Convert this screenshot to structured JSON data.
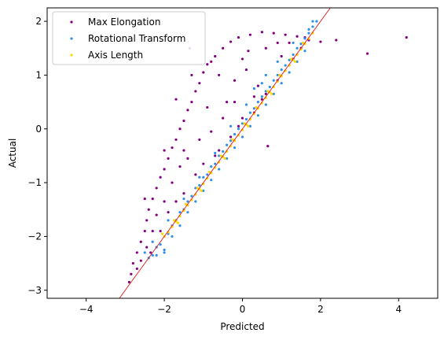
{
  "chart_data": {
    "type": "scatter",
    "xlabel": "Predicted",
    "ylabel": "Actual",
    "xlim": [
      -5,
      5
    ],
    "ylim": [
      -3.15,
      2.25
    ],
    "xticks": [
      -4,
      -2,
      0,
      2,
      4
    ],
    "yticks": [
      -3,
      -2,
      -1,
      0,
      1,
      2
    ],
    "grid": false,
    "legend_position": "top-left",
    "reference_line": {
      "color": "#e41a1c",
      "points": [
        [
          -3.2,
          -3.2
        ],
        [
          2.4,
          2.4
        ]
      ]
    },
    "series": [
      {
        "name": "Max Elongation",
        "color": "#800080",
        "points": [
          [
            -2.9,
            -2.85
          ],
          [
            -2.85,
            -2.7
          ],
          [
            -2.8,
            -2.5
          ],
          [
            -2.7,
            -2.3
          ],
          [
            -2.6,
            -2.1
          ],
          [
            -2.5,
            -1.9
          ],
          [
            -2.45,
            -1.7
          ],
          [
            -2.4,
            -1.5
          ],
          [
            -2.3,
            -1.3
          ],
          [
            -2.2,
            -1.1
          ],
          [
            -2.1,
            -0.9
          ],
          [
            -2.0,
            -0.75
          ],
          [
            -1.9,
            -0.55
          ],
          [
            -1.8,
            -0.35
          ],
          [
            -1.7,
            -0.2
          ],
          [
            -1.6,
            0.0
          ],
          [
            -1.5,
            0.15
          ],
          [
            -1.4,
            0.35
          ],
          [
            -1.3,
            0.5
          ],
          [
            -1.2,
            0.7
          ],
          [
            -1.1,
            0.85
          ],
          [
            -1.0,
            1.05
          ],
          [
            -0.9,
            1.2
          ],
          [
            -0.7,
            1.35
          ],
          [
            -0.5,
            1.5
          ],
          [
            -0.3,
            1.62
          ],
          [
            -0.1,
            1.7
          ],
          [
            0.2,
            1.75
          ],
          [
            0.5,
            1.8
          ],
          [
            0.8,
            1.78
          ],
          [
            1.1,
            1.75
          ],
          [
            1.4,
            1.72
          ],
          [
            1.6,
            1.7
          ],
          [
            2.0,
            1.62
          ],
          [
            2.4,
            1.65
          ],
          [
            3.2,
            1.4
          ],
          [
            4.2,
            1.7
          ],
          [
            -1.35,
            1.5
          ],
          [
            -0.4,
            0.5
          ],
          [
            0.65,
            -0.32
          ],
          [
            0.3,
            0.6
          ],
          [
            -0.2,
            0.9
          ],
          [
            -0.9,
            0.4
          ],
          [
            -1.5,
            -0.4
          ],
          [
            -2.2,
            -1.6
          ],
          [
            -1.8,
            -1.0
          ],
          [
            -1.1,
            -0.2
          ],
          [
            -0.5,
            0.2
          ],
          [
            0.1,
            1.1
          ],
          [
            0.0,
            1.3
          ],
          [
            0.6,
            1.5
          ],
          [
            1.2,
            1.6
          ],
          [
            -1.6,
            -0.7
          ],
          [
            -2.0,
            -1.35
          ],
          [
            -2.6,
            -2.45
          ],
          [
            -2.3,
            -1.9
          ],
          [
            -1.4,
            -0.55
          ],
          [
            -0.8,
            -0.05
          ],
          [
            -0.2,
            0.5
          ],
          [
            0.4,
            0.8
          ],
          [
            1.0,
            1.35
          ],
          [
            -1.9,
            -1.55
          ],
          [
            -1.2,
            -0.85
          ],
          [
            -0.6,
            -0.4
          ],
          [
            0.0,
            0.2
          ],
          [
            0.5,
            0.55
          ],
          [
            1.5,
            1.5
          ],
          [
            1.7,
            1.65
          ],
          [
            -2.45,
            -2.2
          ],
          [
            -1.7,
            -1.35
          ],
          [
            -1.0,
            -0.65
          ],
          [
            -0.3,
            -0.15
          ],
          [
            0.3,
            0.3
          ],
          [
            0.9,
            0.9
          ],
          [
            -2.1,
            -1.9
          ],
          [
            -1.5,
            -1.2
          ],
          [
            -0.7,
            -0.5
          ],
          [
            -0.1,
            0.05
          ],
          [
            0.6,
            0.65
          ],
          [
            1.3,
            1.3
          ],
          [
            -1.3,
            1.0
          ],
          [
            -0.8,
            1.25
          ],
          [
            -2.0,
            -0.4
          ],
          [
            -2.5,
            -1.3
          ],
          [
            -1.7,
            0.55
          ],
          [
            -0.6,
            1.0
          ],
          [
            0.15,
            1.45
          ],
          [
            0.9,
            1.6
          ],
          [
            -2.7,
            -2.6
          ],
          [
            -2.35,
            -2.3
          ]
        ]
      },
      {
        "name": "Rotational Transform",
        "color": "#2e8fe8",
        "points": [
          [
            -2.4,
            -2.4
          ],
          [
            -2.3,
            -2.35
          ],
          [
            -2.2,
            -2.2
          ],
          [
            -2.1,
            -2.15
          ],
          [
            -2.0,
            -2.0
          ],
          [
            -1.9,
            -1.95
          ],
          [
            -1.8,
            -1.8
          ],
          [
            -1.7,
            -1.7
          ],
          [
            -1.6,
            -1.55
          ],
          [
            -1.5,
            -1.5
          ],
          [
            -1.4,
            -1.35
          ],
          [
            -1.3,
            -1.25
          ],
          [
            -1.2,
            -1.1
          ],
          [
            -1.1,
            -1.05
          ],
          [
            -1.0,
            -0.9
          ],
          [
            -0.9,
            -0.85
          ],
          [
            -0.8,
            -0.7
          ],
          [
            -0.7,
            -0.65
          ],
          [
            -0.6,
            -0.5
          ],
          [
            -0.5,
            -0.42
          ],
          [
            -0.4,
            -0.3
          ],
          [
            -0.3,
            -0.22
          ],
          [
            -0.2,
            -0.1
          ],
          [
            -0.1,
            0.0
          ],
          [
            0.0,
            0.1
          ],
          [
            0.1,
            0.18
          ],
          [
            0.2,
            0.3
          ],
          [
            0.3,
            0.38
          ],
          [
            0.4,
            0.5
          ],
          [
            0.5,
            0.6
          ],
          [
            0.6,
            0.7
          ],
          [
            0.7,
            0.78
          ],
          [
            0.8,
            0.9
          ],
          [
            0.9,
            1.0
          ],
          [
            1.0,
            1.1
          ],
          [
            1.1,
            1.18
          ],
          [
            1.2,
            1.28
          ],
          [
            1.3,
            1.38
          ],
          [
            1.4,
            1.5
          ],
          [
            1.5,
            1.58
          ],
          [
            1.6,
            1.68
          ],
          [
            1.7,
            1.78
          ],
          [
            1.8,
            1.9
          ],
          [
            1.8,
            2.0
          ],
          [
            1.9,
            2.0
          ],
          [
            -2.2,
            -2.35
          ],
          [
            -2.0,
            -2.25
          ],
          [
            -1.8,
            -2.0
          ],
          [
            -1.6,
            -1.8
          ],
          [
            -1.4,
            -1.55
          ],
          [
            -1.2,
            -1.35
          ],
          [
            -1.0,
            -1.15
          ],
          [
            -0.8,
            -0.95
          ],
          [
            -0.6,
            -0.75
          ],
          [
            -0.4,
            -0.55
          ],
          [
            -0.2,
            -0.35
          ],
          [
            0.0,
            -0.15
          ],
          [
            0.2,
            0.05
          ],
          [
            0.4,
            0.25
          ],
          [
            0.6,
            0.45
          ],
          [
            0.8,
            0.65
          ],
          [
            1.0,
            0.85
          ],
          [
            1.2,
            1.05
          ],
          [
            1.4,
            1.25
          ],
          [
            1.6,
            1.45
          ],
          [
            -2.3,
            -2.1
          ],
          [
            -1.9,
            -1.7
          ],
          [
            -1.5,
            -1.3
          ],
          [
            -1.1,
            -0.9
          ],
          [
            -0.7,
            -0.45
          ],
          [
            -0.3,
            0.05
          ],
          [
            0.1,
            0.45
          ],
          [
            0.5,
            0.85
          ],
          [
            0.9,
            1.25
          ],
          [
            1.3,
            1.6
          ],
          [
            0.6,
            1.0
          ],
          [
            0.3,
            0.75
          ],
          [
            -2.5,
            -2.3
          ],
          [
            -2.0,
            -2.3
          ],
          [
            1.7,
            1.85
          ]
        ]
      },
      {
        "name": "Axis Length",
        "color": "#ffd700",
        "points": [
          [
            -2.0,
            -2.0
          ],
          [
            -1.9,
            -1.92
          ],
          [
            -1.8,
            -1.82
          ],
          [
            -1.7,
            -1.72
          ],
          [
            -1.6,
            -1.62
          ],
          [
            -1.5,
            -1.52
          ],
          [
            -1.4,
            -1.42
          ],
          [
            -1.3,
            -1.32
          ],
          [
            -1.2,
            -1.22
          ],
          [
            -1.1,
            -1.12
          ],
          [
            -1.0,
            -1.02
          ],
          [
            -0.9,
            -0.92
          ],
          [
            -0.8,
            -0.82
          ],
          [
            -0.7,
            -0.72
          ],
          [
            -0.6,
            -0.62
          ],
          [
            -0.5,
            -0.52
          ],
          [
            -0.4,
            -0.42
          ],
          [
            -0.3,
            -0.32
          ],
          [
            -0.2,
            -0.22
          ],
          [
            -0.1,
            -0.12
          ],
          [
            0.0,
            -0.02
          ],
          [
            0.1,
            0.08
          ],
          [
            0.2,
            0.18
          ],
          [
            0.3,
            0.28
          ],
          [
            0.4,
            0.38
          ],
          [
            0.5,
            0.48
          ],
          [
            0.6,
            0.58
          ],
          [
            0.7,
            0.68
          ],
          [
            0.8,
            0.78
          ],
          [
            0.9,
            0.88
          ],
          [
            1.0,
            0.98
          ],
          [
            1.1,
            1.08
          ],
          [
            1.2,
            1.18
          ],
          [
            1.3,
            1.28
          ],
          [
            1.4,
            1.38
          ],
          [
            1.5,
            1.48
          ],
          [
            1.6,
            1.58
          ],
          [
            1.7,
            1.68
          ],
          [
            1.8,
            1.78
          ],
          [
            -2.05,
            -1.95
          ],
          [
            -1.75,
            -1.7
          ],
          [
            -1.45,
            -1.4
          ],
          [
            -1.15,
            -1.1
          ],
          [
            -0.85,
            -0.8
          ],
          [
            -0.55,
            -0.5
          ],
          [
            -0.25,
            -0.2
          ],
          [
            0.05,
            0.1
          ],
          [
            0.35,
            0.4
          ],
          [
            0.65,
            0.7
          ],
          [
            0.95,
            1.0
          ],
          [
            1.25,
            1.3
          ],
          [
            1.55,
            1.6
          ],
          [
            -1.65,
            -1.75
          ],
          [
            -1.05,
            -1.15
          ],
          [
            -0.45,
            -0.55
          ],
          [
            0.15,
            0.05
          ],
          [
            0.75,
            0.65
          ],
          [
            1.35,
            1.25
          ]
        ]
      }
    ]
  }
}
